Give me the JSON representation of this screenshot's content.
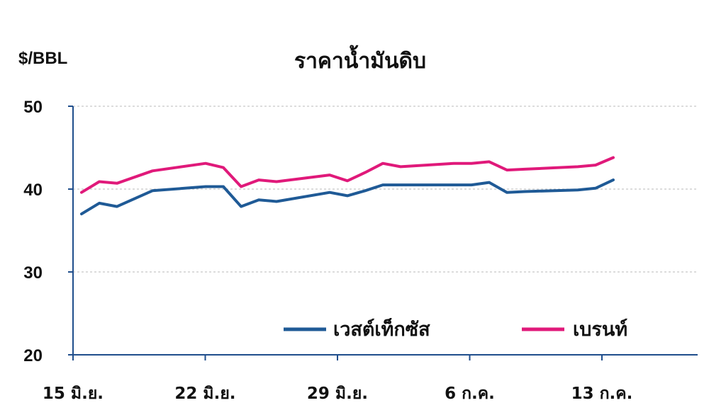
{
  "chart_data": {
    "type": "line",
    "title": "ราคาน้ำมันดิบ",
    "ylabel": "$/BBL",
    "xlabel": "",
    "ylim": [
      20,
      50
    ],
    "yticks": [
      20,
      30,
      40,
      50
    ],
    "grid": true,
    "legend_position": "bottom-right",
    "x": [
      "15 มิ.ย.",
      "16 มิ.ย.",
      "17 มิ.ย.",
      "18 มิ.ย.",
      "19 มิ.ย.",
      "20 มิ.ย.",
      "21 มิ.ย.",
      "22 มิ.ย.",
      "23 มิ.ย.",
      "24 มิ.ย.",
      "25 มิ.ย.",
      "26 มิ.ย.",
      "27 มิ.ย.",
      "28 มิ.ย.",
      "29 มิ.ย.",
      "30 มิ.ย.",
      "1 ก.ค.",
      "2 ก.ค.",
      "3 ก.ค.",
      "4 ก.ค.",
      "5 ก.ค.",
      "6 ก.ค.",
      "7 ก.ค.",
      "8 ก.ค.",
      "9 ก.ค.",
      "10 ก.ค.",
      "11 ก.ค.",
      "12 ก.ค.",
      "13 ก.ค.",
      "14 ก.ค.",
      "15 ก.ค."
    ],
    "xtick_labels": [
      "15 มิ.ย.",
      "22 มิ.ย.",
      "29 มิ.ย.",
      "6 ก.ค.",
      "13 ก.ค."
    ],
    "series": [
      {
        "name": "เวสต์เท็กซัส",
        "color": "#1f5a96",
        "x": [
          "15 มิ.ย.",
          "16 มิ.ย.",
          "17 มิ.ย.",
          "19 มิ.ย.",
          "22 มิ.ย.",
          "23 มิ.ย.",
          "24 มิ.ย.",
          "25 มิ.ย.",
          "26 มิ.ย.",
          "29 มิ.ย.",
          "30 มิ.ย.",
          "1 ก.ค.",
          "2 ก.ค.",
          "3 ก.ค.",
          "6 ก.ค.",
          "7 ก.ค.",
          "8 ก.ค.",
          "9 ก.ค.",
          "10 ก.ค.",
          "13 ก.ค.",
          "14 ก.ค.",
          "15 ก.ค."
        ],
        "values": [
          37.0,
          38.3,
          37.9,
          39.8,
          40.3,
          40.3,
          37.9,
          38.7,
          38.5,
          39.6,
          39.2,
          39.8,
          40.5,
          40.5,
          40.5,
          40.5,
          40.8,
          39.6,
          39.7,
          39.9,
          40.1,
          41.1
        ]
      },
      {
        "name": "เบรนท์",
        "color": "#e0197a",
        "x": [
          "15 มิ.ย.",
          "16 มิ.ย.",
          "17 มิ.ย.",
          "19 มิ.ย.",
          "22 มิ.ย.",
          "23 มิ.ย.",
          "24 มิ.ย.",
          "25 มิ.ย.",
          "26 มิ.ย.",
          "29 มิ.ย.",
          "30 มิ.ย.",
          "1 ก.ค.",
          "2 ก.ค.",
          "3 ก.ค.",
          "6 ก.ค.",
          "7 ก.ค.",
          "8 ก.ค.",
          "9 ก.ค.",
          "10 ก.ค.",
          "13 ก.ค.",
          "14 ก.ค.",
          "15 ก.ค."
        ],
        "values": [
          39.6,
          40.9,
          40.7,
          42.2,
          43.1,
          42.6,
          40.3,
          41.1,
          40.9,
          41.7,
          41.0,
          42.0,
          43.1,
          42.7,
          43.1,
          43.1,
          43.3,
          42.3,
          42.4,
          42.7,
          42.9,
          43.8
        ]
      }
    ]
  }
}
